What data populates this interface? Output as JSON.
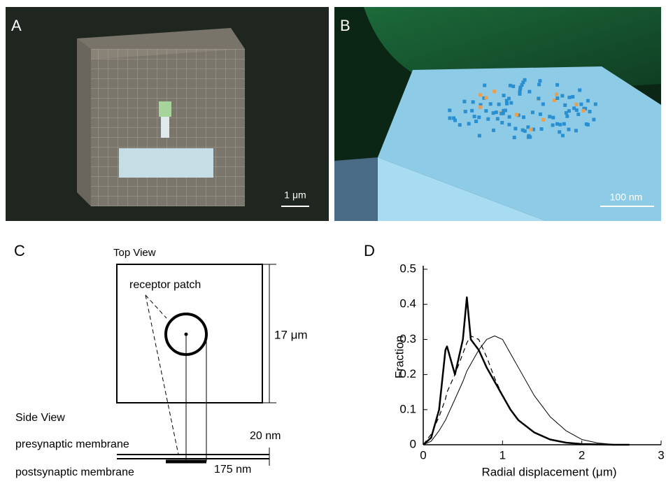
{
  "panels": {
    "a": {
      "label": "A",
      "scale": "1 μm"
    },
    "b": {
      "label": "B",
      "scale": "100 nm"
    },
    "c": {
      "label": "C",
      "top_view": "Top View",
      "receptor_patch": "receptor patch",
      "size": "17 μm",
      "side_view": "Side View",
      "presynaptic": "presynaptic membrane",
      "gap": "20 nm",
      "postsynaptic": "postsynaptic membrane",
      "patch_size": "175 nm"
    },
    "d": {
      "label": "D"
    }
  },
  "chart_data": {
    "type": "line",
    "xlabel": "Radial displacement (μm)",
    "ylabel": "Fraction",
    "x": [
      0,
      0.1,
      0.2,
      0.28,
      0.3,
      0.4,
      0.5,
      0.55,
      0.6,
      0.7,
      0.8,
      0.9,
      1.0,
      1.1,
      1.2,
      1.4,
      1.6,
      1.8,
      2.0,
      2.2,
      2.4,
      2.6
    ],
    "series": [
      {
        "color": "#000000",
        "linewidth": 2.5,
        "linestyle": "solid",
        "values": [
          0,
          0.02,
          0.1,
          0.27,
          0.28,
          0.2,
          0.3,
          0.42,
          0.3,
          0.27,
          0.22,
          0.18,
          0.14,
          0.1,
          0.07,
          0.035,
          0.015,
          0.006,
          0.002,
          0.001,
          0,
          0
        ]
      },
      {
        "color": "#000000",
        "linewidth": 1.2,
        "linestyle": "dashed",
        "values": [
          0,
          0.03,
          0.08,
          0.13,
          0.15,
          0.2,
          0.26,
          0.29,
          0.31,
          0.3,
          0.25,
          0.19,
          0.14,
          0.1,
          0.07,
          0.035,
          0.015,
          0.006,
          0.002,
          0.001,
          0,
          0
        ]
      },
      {
        "color": "#000000",
        "linewidth": 1,
        "linestyle": "solid",
        "values": [
          0,
          0.01,
          0.04,
          0.07,
          0.08,
          0.13,
          0.18,
          0.21,
          0.23,
          0.27,
          0.3,
          0.31,
          0.3,
          0.26,
          0.22,
          0.14,
          0.08,
          0.04,
          0.015,
          0.005,
          0.001,
          0
        ]
      }
    ],
    "xlim": [
      0,
      3
    ],
    "xticks": [
      0,
      1,
      2,
      3
    ],
    "ylim": [
      0,
      0.5
    ],
    "yticks": [
      0,
      0.1,
      0.2,
      0.3,
      0.4,
      0.5
    ]
  }
}
